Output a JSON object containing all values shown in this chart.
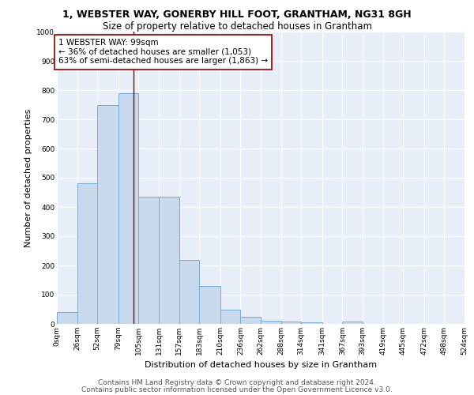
{
  "title1": "1, WEBSTER WAY, GONERBY HILL FOOT, GRANTHAM, NG31 8GH",
  "title2": "Size of property relative to detached houses in Grantham",
  "xlabel": "Distribution of detached houses by size in Grantham",
  "ylabel": "Number of detached properties",
  "bar_heights": [
    40,
    480,
    750,
    790,
    435,
    435,
    220,
    130,
    50,
    25,
    12,
    8,
    5,
    0,
    8,
    0,
    0,
    0,
    0,
    0
  ],
  "bin_edges": [
    0,
    26,
    52,
    79,
    105,
    131,
    157,
    183,
    210,
    236,
    262,
    288,
    314,
    341,
    367,
    393,
    419,
    445,
    472,
    498,
    524
  ],
  "bin_labels": [
    "0sqm",
    "26sqm",
    "52sqm",
    "79sqm",
    "105sqm",
    "131sqm",
    "157sqm",
    "183sqm",
    "210sqm",
    "236sqm",
    "262sqm",
    "288sqm",
    "314sqm",
    "341sqm",
    "367sqm",
    "393sqm",
    "419sqm",
    "445sqm",
    "472sqm",
    "498sqm",
    "524sqm"
  ],
  "bar_color": "#c8d9ee",
  "bar_edge_color": "#7aadd4",
  "vline_x": 99,
  "vline_color": "#8b0000",
  "annotation_text": "1 WEBSTER WAY: 99sqm\n← 36% of detached houses are smaller (1,053)\n63% of semi-detached houses are larger (1,863) →",
  "annotation_box_color": "white",
  "annotation_box_edge_color": "#8b0000",
  "ylim": [
    0,
    1000
  ],
  "yticks": [
    0,
    100,
    200,
    300,
    400,
    500,
    600,
    700,
    800,
    900,
    1000
  ],
  "bg_color": "#e8eef8",
  "grid_color": "white",
  "footer_line1": "Contains HM Land Registry data © Crown copyright and database right 2024.",
  "footer_line2": "Contains public sector information licensed under the Open Government Licence v3.0.",
  "title1_fontsize": 9,
  "title2_fontsize": 8.5,
  "xlabel_fontsize": 8,
  "ylabel_fontsize": 8,
  "tick_fontsize": 6.5,
  "annotation_fontsize": 7.5,
  "footer_fontsize": 6.5
}
